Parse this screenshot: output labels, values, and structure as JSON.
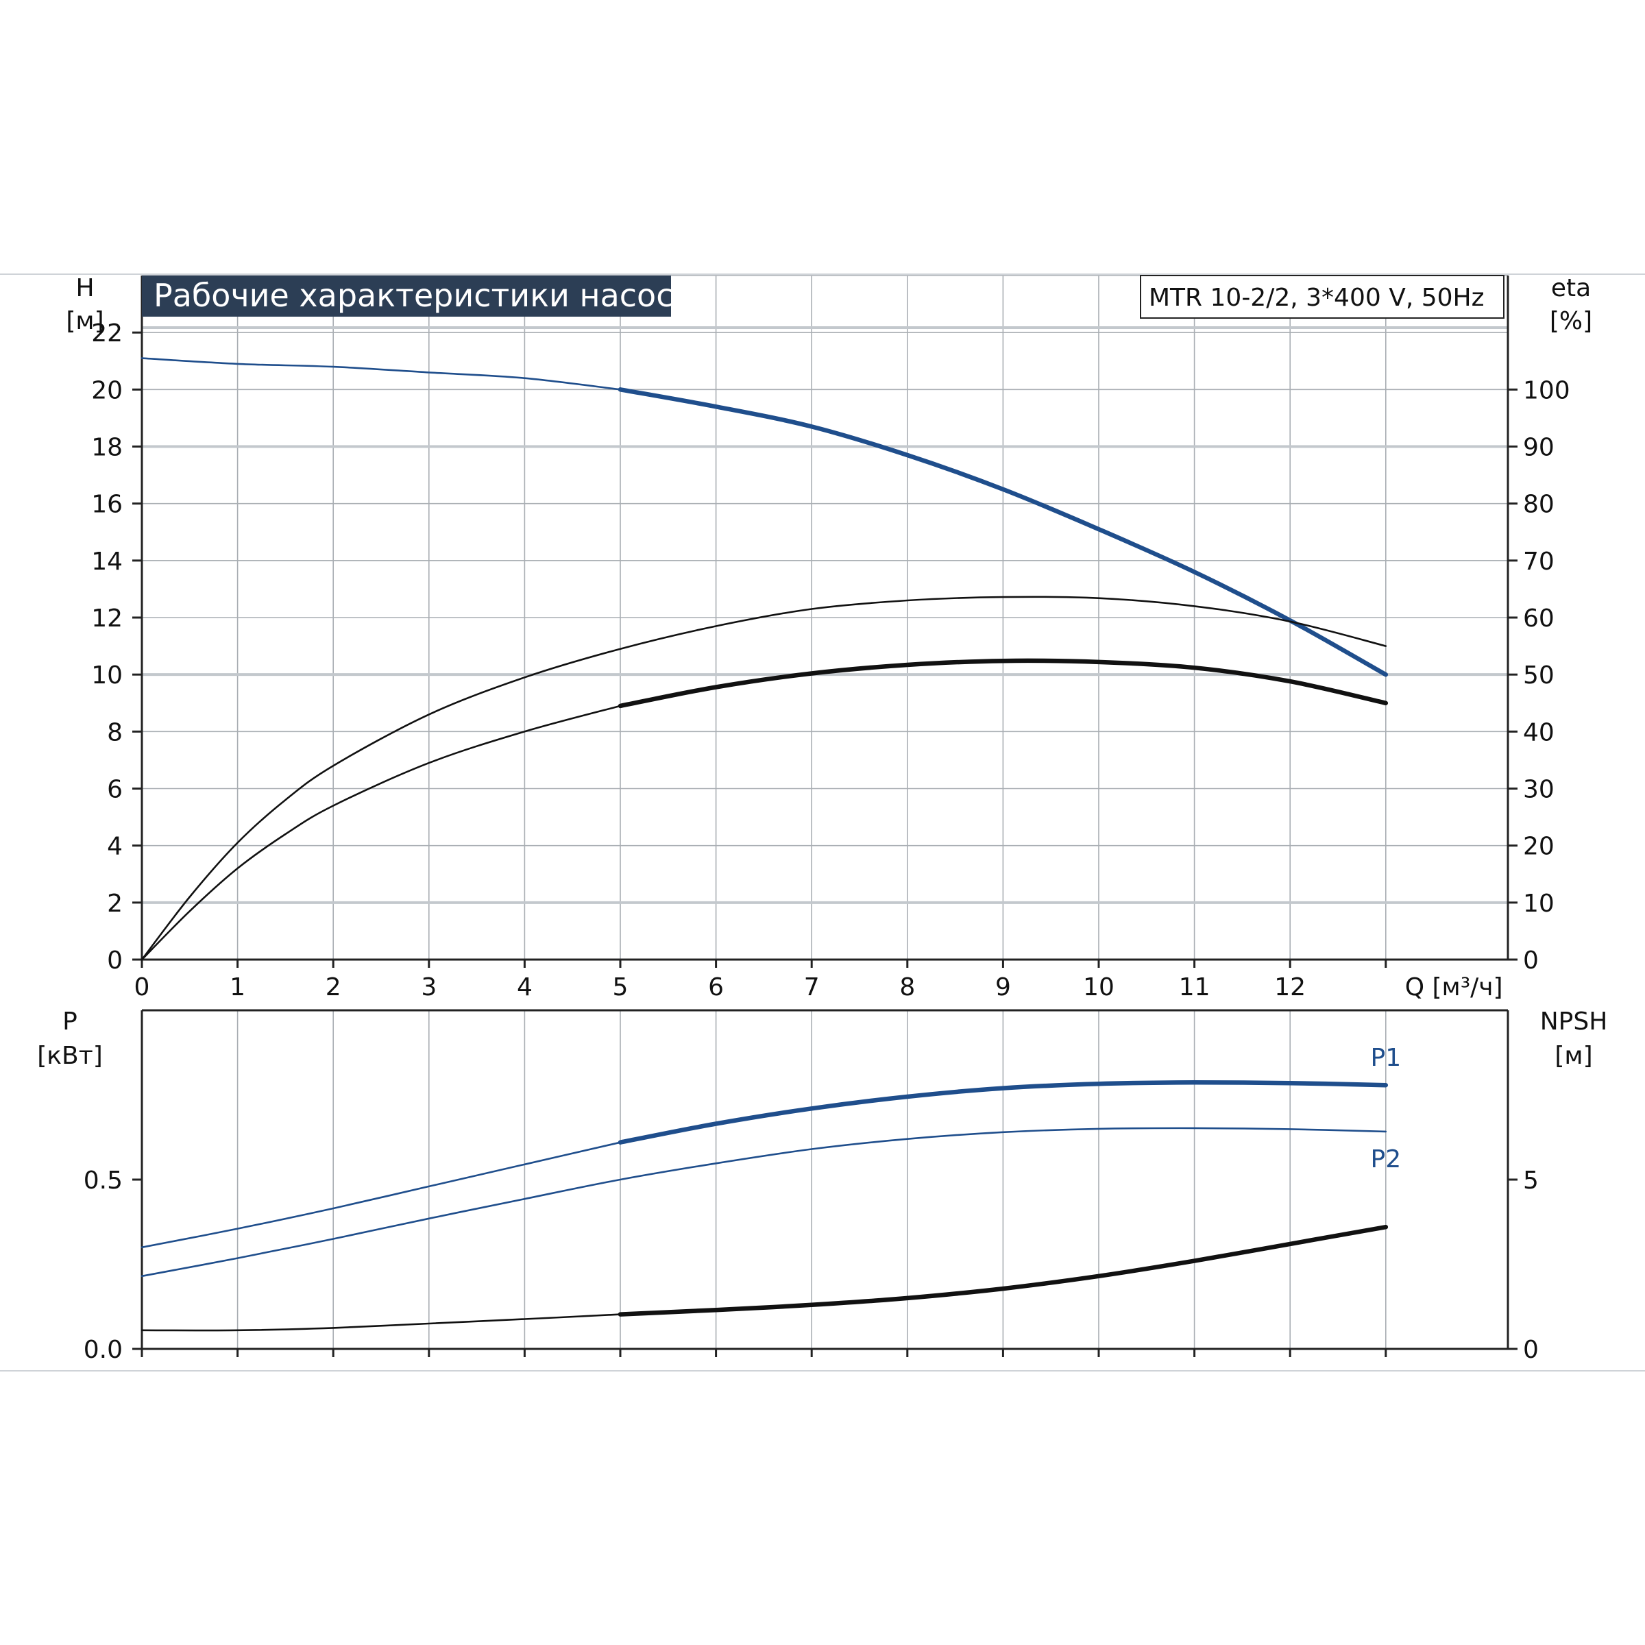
{
  "chart_data": [
    {
      "id": "performance",
      "type": "line",
      "title": "Рабочие характеристики насоса",
      "model": "MTR 10-2/2, 3*400 V, 50Hz",
      "xlabel": "Q [м³/ч]",
      "ylabel": [
        "H",
        "[м]"
      ],
      "ylabel_right": [
        "eta",
        "[%]"
      ],
      "xlim": [
        0,
        14
      ],
      "ylim": [
        0,
        24
      ],
      "ylim_right": [
        0,
        120
      ],
      "xticks": [
        0,
        1,
        2,
        3,
        4,
        5,
        6,
        7,
        8,
        9,
        10,
        11,
        12
      ],
      "yticks": [
        0,
        2,
        4,
        6,
        8,
        10,
        12,
        14,
        16,
        18,
        20,
        22
      ],
      "yticks_right": [
        0,
        10,
        20,
        30,
        40,
        50,
        60,
        70,
        80,
        90,
        100
      ],
      "grid": true,
      "series": [
        {
          "axis": "left",
          "color": "#1f4e8c",
          "x": [
            0,
            1,
            2,
            3,
            4,
            5,
            6,
            7,
            8,
            9,
            10,
            11,
            12,
            13
          ],
          "y": [
            21.1,
            20.9,
            20.8,
            20.6,
            20.4,
            20.0,
            19.4,
            18.7,
            17.7,
            16.5,
            15.1,
            13.6,
            11.9,
            10.0
          ],
          "bold_from": 5
        },
        {
          "axis": "right",
          "color": "#111111",
          "x": [
            0,
            0.5,
            1,
            1.5,
            2,
            3,
            4,
            5,
            6,
            7,
            8,
            9,
            10,
            11,
            12,
            13
          ],
          "y": [
            0,
            11,
            20.5,
            28,
            34,
            43,
            49.5,
            54.5,
            58.5,
            61.5,
            63,
            63.6,
            63.4,
            62,
            59.3,
            55
          ],
          "bold_from": 99
        },
        {
          "axis": "right",
          "color": "#111111",
          "x": [
            0,
            0.5,
            1,
            1.5,
            2,
            3,
            4,
            5,
            6,
            7,
            8,
            9,
            10,
            11,
            12,
            13
          ],
          "y": [
            0,
            8.5,
            16,
            22,
            27,
            34.5,
            40,
            44.5,
            47.8,
            50.2,
            51.7,
            52.4,
            52.2,
            51.2,
            48.8,
            45
          ],
          "bold_from": 5
        }
      ]
    },
    {
      "id": "power",
      "type": "line",
      "ylabel": [
        "P",
        "[кВт]"
      ],
      "ylabel_right": [
        "NPSH",
        "[м]"
      ],
      "xlim": [
        0,
        14
      ],
      "ylim": [
        0,
        1
      ],
      "ylim_right": [
        0,
        10
      ],
      "yticks": [
        "0.0",
        "0.5"
      ],
      "yticks_right": [
        0,
        5
      ],
      "grid": true,
      "series": [
        {
          "name": "P1",
          "axis": "left",
          "color": "#1f4e8c",
          "x": [
            0,
            1,
            2,
            3,
            4,
            5,
            6,
            7,
            8,
            9,
            10,
            11,
            12,
            13
          ],
          "y": [
            0.3,
            0.355,
            0.415,
            0.48,
            0.545,
            0.61,
            0.665,
            0.71,
            0.745,
            0.77,
            0.783,
            0.787,
            0.785,
            0.779
          ],
          "bold_from": 5
        },
        {
          "name": "P2",
          "axis": "left",
          "color": "#1f4e8c",
          "x": [
            0,
            1,
            2,
            3,
            4,
            5,
            6,
            7,
            8,
            9,
            10,
            11,
            12,
            13
          ],
          "y": [
            0.215,
            0.268,
            0.325,
            0.385,
            0.443,
            0.5,
            0.548,
            0.59,
            0.62,
            0.64,
            0.65,
            0.652,
            0.649,
            0.642
          ],
          "bold_from": 99
        },
        {
          "axis": "right",
          "color": "#111111",
          "x": [
            0,
            1,
            2,
            3,
            4,
            5,
            6,
            7,
            8,
            9,
            10,
            11,
            12,
            13
          ],
          "y": [
            0.55,
            0.55,
            0.62,
            0.75,
            0.88,
            1.02,
            1.15,
            1.3,
            1.5,
            1.78,
            2.15,
            2.6,
            3.1,
            3.6
          ],
          "bold_from": 5
        }
      ]
    }
  ]
}
